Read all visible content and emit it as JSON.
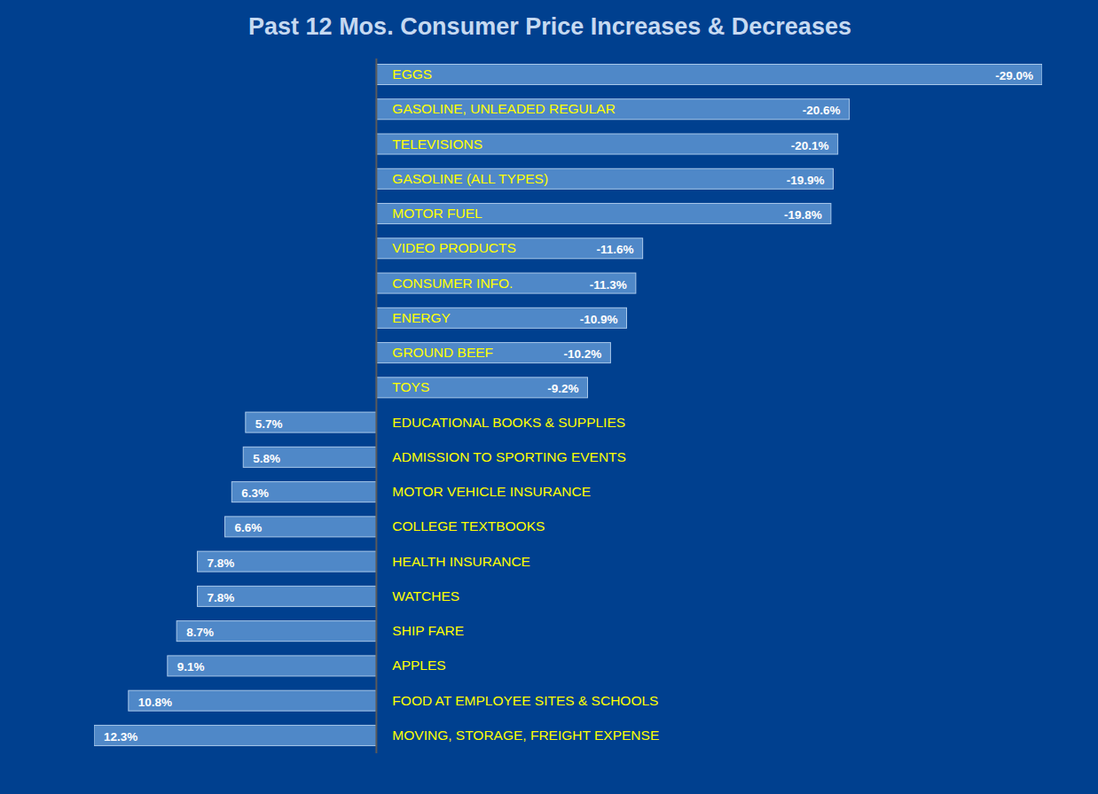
{
  "chart_data": {
    "type": "bar",
    "title": "Past 12 Mos. Consumer Price Increases & Decreases",
    "orientation": "horizontal",
    "categories": [
      "EGGS",
      "GASOLINE, UNLEADED REGULAR",
      "TELEVISIONS",
      "GASOLINE (ALL TYPES)",
      "MOTOR FUEL",
      "VIDEO PRODUCTS",
      "CONSUMER INFO.",
      "ENERGY",
      "GROUND BEEF",
      "TOYS",
      "EDUCATIONAL BOOKS & SUPPLIES",
      "ADMISSION TO SPORTING EVENTS",
      "MOTOR VEHICLE INSURANCE",
      "COLLEGE TEXTBOOKS",
      "HEALTH INSURANCE",
      "WATCHES",
      "SHIP FARE",
      "APPLES",
      "FOOD AT EMPLOYEE SITES & SCHOOLS",
      "MOVING, STORAGE, FREIGHT EXPENSE"
    ],
    "values": [
      -29.0,
      -20.6,
      -20.1,
      -19.9,
      -19.8,
      -11.6,
      -11.3,
      -10.9,
      -10.2,
      -9.2,
      5.7,
      5.8,
      6.3,
      6.6,
      7.8,
      7.8,
      8.7,
      9.1,
      10.8,
      12.3
    ],
    "value_labels": [
      "-29.0%",
      "-20.6%",
      "-20.1%",
      "-19.9%",
      "-19.8%",
      "-11.6%",
      "-11.3%",
      "-10.9%",
      "-10.2%",
      "-9.2%",
      "5.7%",
      "5.8%",
      "6.3%",
      "6.6%",
      "7.8%",
      "7.8%",
      "8.7%",
      "9.1%",
      "10.8%",
      "12.3%"
    ],
    "color": "#4f88c8",
    "xlim": [
      12.3,
      -29.0
    ],
    "data_labels": true,
    "tick_labels": false,
    "grid": false
  }
}
